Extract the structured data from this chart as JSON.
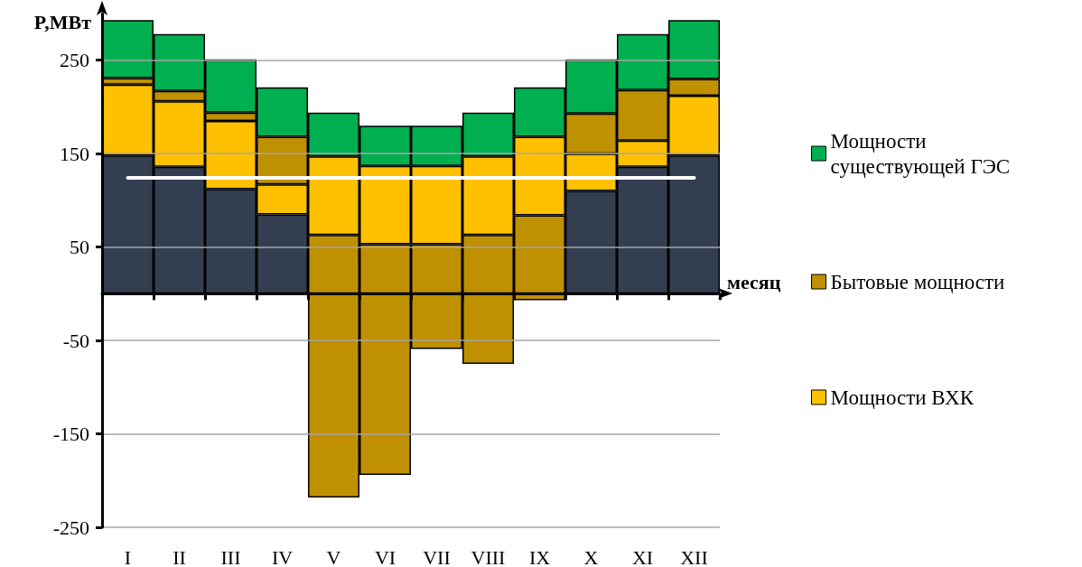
{
  "chart_data": {
    "type": "bar",
    "ylabel": "P,МВт",
    "xlabel": "месяц",
    "stacked": true,
    "categories": [
      "I",
      "II",
      "III",
      "IV",
      "V",
      "VI",
      "VII",
      "VIII",
      "IX",
      "X",
      "XI",
      "XII"
    ],
    "series": [
      {
        "color": "#333f50",
        "values": [
          148,
          136,
          112,
          85,
          null,
          null,
          null,
          null,
          null,
          110,
          136,
          148
        ]
      },
      {
        "color": "#bf9000",
        "values": [
          null,
          null,
          null,
          null,
          63,
          53,
          53,
          63,
          84,
          null,
          null,
          null
        ]
      },
      {
        "name": "Мощности ВХК",
        "color": "#ffc000",
        "values": [
          76,
          70,
          73,
          32,
          84,
          84,
          84,
          84,
          84,
          40,
          28,
          64
        ]
      },
      {
        "name": "Бытовые мощности",
        "color": "#bf9000",
        "values": [
          7,
          11,
          9,
          51,
          -218,
          -194,
          -59,
          -75,
          -7,
          43,
          54,
          18
        ]
      },
      {
        "name": "Мощности существующей ГЭС",
        "color": "#00b050",
        "values": [
          62,
          61,
          57,
          53,
          47,
          43,
          43,
          47,
          53,
          58,
          60,
          63
        ]
      }
    ],
    "ylim": [
      -250,
      300
    ],
    "yticks": [
      -250,
      -150,
      -50,
      50,
      150,
      250
    ],
    "grid": "y",
    "legend": "right",
    "ref_lines": [
      {
        "axis": "y",
        "value": 124.5,
        "color": "#ffffff"
      }
    ]
  }
}
